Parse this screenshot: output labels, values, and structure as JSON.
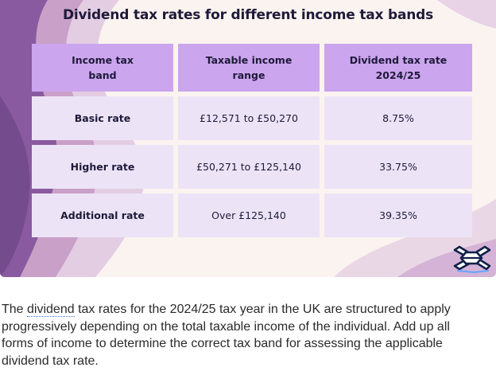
{
  "infographic": {
    "title": "Dividend tax rates for different income tax bands",
    "table": {
      "headers": [
        {
          "line1": "Income tax",
          "line2": "band"
        },
        {
          "line1": "Taxable income",
          "line2": "range"
        },
        {
          "line1": "Dividend tax rate",
          "line2": "2024/25"
        }
      ],
      "rows": [
        {
          "band": "Basic rate",
          "range": "£12,571 to £50,270",
          "rate": "8.75%"
        },
        {
          "band": "Higher rate",
          "range": "£50,271 to £125,140",
          "rate": "33.75%"
        },
        {
          "band": "Additional rate",
          "range": "Over £125,140",
          "rate": "39.35%"
        }
      ]
    },
    "logo_icon": "brand-logo-icon"
  },
  "article": {
    "line1_pre": "The ",
    "link_word": "dividend",
    "line1_post": " tax rates for the 2024/25 tax year in the UK are structured to apply",
    "line2": "progressively depending on the total taxable income of the individual. Add up all",
    "line3": "forms of income to determine the correct tax band for assessing the applicable",
    "line4": "dividend tax rate."
  },
  "colors": {
    "header_cell": "#cba5ee",
    "data_cell": "#ece4f6",
    "background": "#faf3ef",
    "swirl_dark": "#8a5aa0",
    "swirl_light": "#d4b3d6",
    "link_underline": "#3b6fd6"
  }
}
